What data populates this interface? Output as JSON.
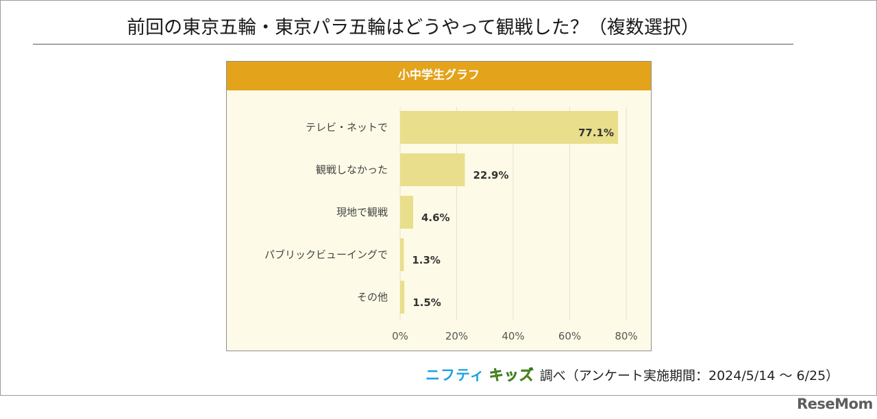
{
  "title": "前回の東京五輪・東京パラ五輪はどうやって観戦した？（複数選択）",
  "source": {
    "brand_part1": "ニフティ",
    "brand_part2": "キッズ",
    "text": "調べ（アンケート実施期間：2024/5/14 ～ 6/25）"
  },
  "footer_logo": "ReseMom",
  "colors": {
    "header": "#e3a31a",
    "bar": "#e9de8b",
    "panel_bg": "#fdfbe7",
    "grid": "#e6e1c8"
  },
  "chart_data": {
    "type": "bar",
    "orientation": "horizontal",
    "title": "小中学生グラフ",
    "categories": [
      "テレビ・ネットで",
      "観戦しなかった",
      "現地で観戦",
      "パブリックビューイングで",
      "その他"
    ],
    "values": [
      77.1,
      22.9,
      4.6,
      1.3,
      1.5
    ],
    "value_labels": [
      "77.1%",
      "22.9%",
      "4.6%",
      "1.3%",
      "1.5%"
    ],
    "xlim": [
      0,
      80
    ],
    "xticks": [
      0,
      20,
      40,
      60,
      80
    ],
    "xtick_labels": [
      "0%",
      "20%",
      "40%",
      "60%",
      "80%"
    ],
    "grid": true,
    "legend": false
  }
}
